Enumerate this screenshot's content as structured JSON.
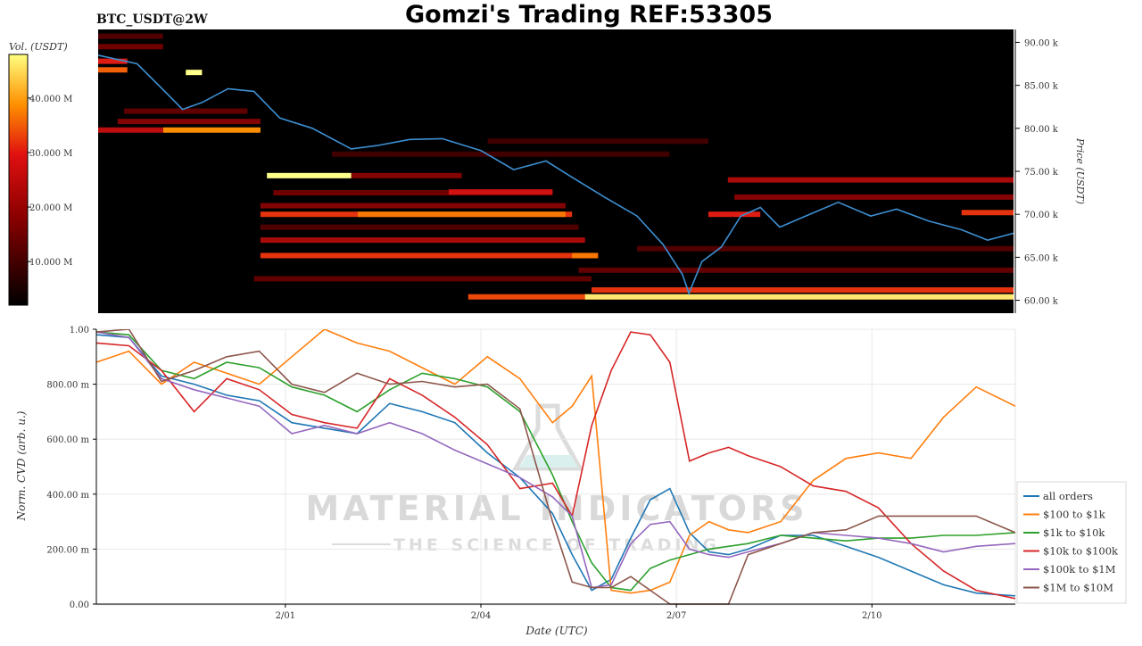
{
  "header": {
    "pair_label": "BTC_USDT@2W",
    "title": "Gomzi's Trading REF:53305"
  },
  "watermark": {
    "line1": "MATERIAL INDICATORS",
    "line2": "THE SCIENCE OF TRADING"
  },
  "chart_data": [
    {
      "type": "heatmap",
      "title": "",
      "colorbar_label": "Vol. (USDT)",
      "colorbar_ticks": [
        "10.000 M",
        "20.000 M",
        "30.000 M",
        "40.000 M"
      ],
      "colorbar_tick_values": [
        10,
        20,
        30,
        40
      ],
      "colorbar_range": [
        2,
        48
      ],
      "ylabel": "Price (USDT)",
      "y_ticks": [
        "60.00 k",
        "65.00 k",
        "70.00 k",
        "75.00 k",
        "80.00 k",
        "85.00 k",
        "90.00 k"
      ],
      "y_tick_values": [
        60000,
        65000,
        70000,
        75000,
        80000,
        85000,
        90000
      ],
      "ylim": [
        58500,
        91500
      ],
      "xlim": [
        0,
        14.1
      ],
      "colors": {
        "background": "#000000",
        "price_line": "#3d8fd1"
      },
      "price_line": {
        "x": [
          0.0,
          0.3,
          0.6,
          1.0,
          1.3,
          1.6,
          2.0,
          2.4,
          2.8,
          3.3,
          3.9,
          4.3,
          4.8,
          5.3,
          5.9,
          6.4,
          6.9,
          7.3,
          7.8,
          8.3,
          8.7,
          9.0,
          9.1,
          9.3,
          9.6,
          9.9,
          10.2,
          10.5,
          10.9,
          11.4,
          11.9,
          12.3,
          12.8,
          13.3,
          13.7,
          14.1
        ],
        "y": [
          88500,
          88000,
          87500,
          84500,
          82200,
          83000,
          84600,
          84300,
          81200,
          80000,
          77600,
          78000,
          78700,
          78800,
          77400,
          75200,
          76200,
          74300,
          72000,
          69800,
          66500,
          63000,
          60800,
          64500,
          66200,
          69800,
          70800,
          68500,
          69800,
          71400,
          69800,
          70600,
          69200,
          68200,
          67000,
          67800
        ]
      },
      "liquidity_levels": [
        {
          "price": 60400,
          "x_start": 5.7,
          "x_end": 14.1,
          "intensity": 32
        },
        {
          "price": 60400,
          "x_start": 7.5,
          "x_end": 14.1,
          "intensity": 46
        },
        {
          "price": 61200,
          "x_start": 7.6,
          "x_end": 14.1,
          "intensity": 30
        },
        {
          "price": 65200,
          "x_start": 2.5,
          "x_end": 7.7,
          "intensity": 30
        },
        {
          "price": 65200,
          "x_start": 7.3,
          "x_end": 7.7,
          "intensity": 36
        },
        {
          "price": 67000,
          "x_start": 2.5,
          "x_end": 7.5,
          "intensity": 22
        },
        {
          "price": 70000,
          "x_start": 2.5,
          "x_end": 7.3,
          "intensity": 30
        },
        {
          "price": 70000,
          "x_start": 4.0,
          "x_end": 7.2,
          "intensity": 36
        },
        {
          "price": 71000,
          "x_start": 2.5,
          "x_end": 7.2,
          "intensity": 18
        },
        {
          "price": 72500,
          "x_start": 2.7,
          "x_end": 7.0,
          "intensity": 16
        },
        {
          "price": 72600,
          "x_start": 5.4,
          "x_end": 7.0,
          "intensity": 26
        },
        {
          "price": 74500,
          "x_start": 2.6,
          "x_end": 3.9,
          "intensity": 48
        },
        {
          "price": 74500,
          "x_start": 3.9,
          "x_end": 5.6,
          "intensity": 18
        },
        {
          "price": 74000,
          "x_start": 9.7,
          "x_end": 14.1,
          "intensity": 22
        },
        {
          "price": 72000,
          "x_start": 9.8,
          "x_end": 14.1,
          "intensity": 18
        },
        {
          "price": 70000,
          "x_start": 9.4,
          "x_end": 10.2,
          "intensity": 28
        },
        {
          "price": 79800,
          "x_start": 1.0,
          "x_end": 2.5,
          "intensity": 38
        },
        {
          "price": 79800,
          "x_start": 0.0,
          "x_end": 1.0,
          "intensity": 24
        },
        {
          "price": 80800,
          "x_start": 0.3,
          "x_end": 2.5,
          "intensity": 18
        },
        {
          "price": 82000,
          "x_start": 0.4,
          "x_end": 2.3,
          "intensity": 14
        },
        {
          "price": 86800,
          "x_start": 0.0,
          "x_end": 0.45,
          "intensity": 34
        },
        {
          "price": 87800,
          "x_start": 0.0,
          "x_end": 0.45,
          "intensity": 28
        },
        {
          "price": 89500,
          "x_start": 0.0,
          "x_end": 1.0,
          "intensity": 16
        },
        {
          "price": 90700,
          "x_start": 0.0,
          "x_end": 1.0,
          "intensity": 12
        },
        {
          "price": 86500,
          "x_start": 1.35,
          "x_end": 1.6,
          "intensity": 48
        },
        {
          "price": 63500,
          "x_start": 7.4,
          "x_end": 14.1,
          "intensity": 14
        },
        {
          "price": 66000,
          "x_start": 8.3,
          "x_end": 14.1,
          "intensity": 12
        },
        {
          "price": 77000,
          "x_start": 3.6,
          "x_end": 8.8,
          "intensity": 10
        },
        {
          "price": 78500,
          "x_start": 6.0,
          "x_end": 9.4,
          "intensity": 10
        },
        {
          "price": 62500,
          "x_start": 2.4,
          "x_end": 7.6,
          "intensity": 14
        },
        {
          "price": 68500,
          "x_start": 2.5,
          "x_end": 7.4,
          "intensity": 12
        },
        {
          "price": 70200,
          "x_start": 13.3,
          "x_end": 14.1,
          "intensity": 30
        }
      ]
    },
    {
      "type": "line",
      "xlabel": "Date (UTC)",
      "ylabel": "Norm. CVD (arb. u.)",
      "x_ticks": [
        "2/01",
        "2/04",
        "2/07",
        "2/10"
      ],
      "x_tick_values": [
        2.9,
        5.9,
        8.9,
        11.9
      ],
      "y_ticks": [
        "0.00",
        "200.00 m",
        "400.00 m",
        "600.00 m",
        "800.00 m",
        "1.00"
      ],
      "y_tick_values": [
        0,
        0.2,
        0.4,
        0.6,
        0.8,
        1.0
      ],
      "xlim": [
        0,
        14.1
      ],
      "ylim": [
        0,
        1.0
      ],
      "grid": true,
      "legend_position": "lower-right-outside",
      "x": [
        0.0,
        0.5,
        1.0,
        1.5,
        2.0,
        2.5,
        3.0,
        3.5,
        4.0,
        4.5,
        5.0,
        5.5,
        6.0,
        6.5,
        7.0,
        7.3,
        7.6,
        7.9,
        8.2,
        8.5,
        8.8,
        9.1,
        9.4,
        9.7,
        10.0,
        10.5,
        11.0,
        11.5,
        12.0,
        12.5,
        13.0,
        13.5,
        14.1
      ],
      "series": [
        {
          "name": "all orders",
          "color": "#1f77b4",
          "values": [
            0.98,
            0.97,
            0.83,
            0.8,
            0.76,
            0.74,
            0.66,
            0.64,
            0.62,
            0.73,
            0.7,
            0.66,
            0.55,
            0.46,
            0.33,
            0.18,
            0.05,
            0.09,
            0.24,
            0.38,
            0.42,
            0.26,
            0.19,
            0.18,
            0.2,
            0.25,
            0.25,
            0.21,
            0.17,
            0.12,
            0.07,
            0.04,
            0.03
          ]
        },
        {
          "name": "$100 to $1k",
          "color": "#ff7f0e",
          "values": [
            0.88,
            0.92,
            0.8,
            0.88,
            0.84,
            0.8,
            0.9,
            1.0,
            0.95,
            0.92,
            0.86,
            0.8,
            0.9,
            0.82,
            0.66,
            0.72,
            0.83,
            0.05,
            0.04,
            0.05,
            0.08,
            0.25,
            0.3,
            0.27,
            0.26,
            0.3,
            0.45,
            0.53,
            0.55,
            0.53,
            0.68,
            0.79,
            0.72
          ]
        },
        {
          "name": "$1k to $10k",
          "color": "#2ca02c",
          "values": [
            0.99,
            0.98,
            0.85,
            0.82,
            0.88,
            0.86,
            0.79,
            0.76,
            0.7,
            0.78,
            0.84,
            0.82,
            0.79,
            0.7,
            0.47,
            0.3,
            0.15,
            0.06,
            0.05,
            0.13,
            0.16,
            0.18,
            0.2,
            0.21,
            0.22,
            0.25,
            0.24,
            0.23,
            0.24,
            0.24,
            0.25,
            0.25,
            0.26
          ]
        },
        {
          "name": "$10k to $100k",
          "color": "#d62728",
          "values": [
            0.95,
            0.94,
            0.85,
            0.7,
            0.82,
            0.78,
            0.69,
            0.66,
            0.64,
            0.82,
            0.76,
            0.68,
            0.58,
            0.42,
            0.44,
            0.32,
            0.65,
            0.85,
            0.99,
            0.98,
            0.88,
            0.52,
            0.55,
            0.57,
            0.54,
            0.5,
            0.43,
            0.41,
            0.35,
            0.22,
            0.12,
            0.05,
            0.02
          ]
        },
        {
          "name": "$100k to $1M",
          "color": "#9467bd",
          "values": [
            0.99,
            0.97,
            0.82,
            0.78,
            0.75,
            0.72,
            0.62,
            0.65,
            0.62,
            0.66,
            0.62,
            0.56,
            0.51,
            0.46,
            0.39,
            0.32,
            0.06,
            0.07,
            0.22,
            0.29,
            0.3,
            0.2,
            0.18,
            0.17,
            0.19,
            0.22,
            0.26,
            0.25,
            0.24,
            0.22,
            0.19,
            0.21,
            0.22
          ]
        },
        {
          "name": "$1M to $10M",
          "color": "#8c564b",
          "values": [
            0.99,
            1.0,
            0.81,
            0.85,
            0.9,
            0.92,
            0.8,
            0.77,
            0.84,
            0.8,
            0.81,
            0.79,
            0.8,
            0.71,
            0.3,
            0.08,
            0.06,
            0.06,
            0.1,
            0.05,
            0.0,
            0.0,
            0.0,
            0.0,
            0.18,
            0.22,
            0.26,
            0.27,
            0.32,
            0.32,
            0.32,
            0.32,
            0.26
          ]
        }
      ]
    }
  ]
}
